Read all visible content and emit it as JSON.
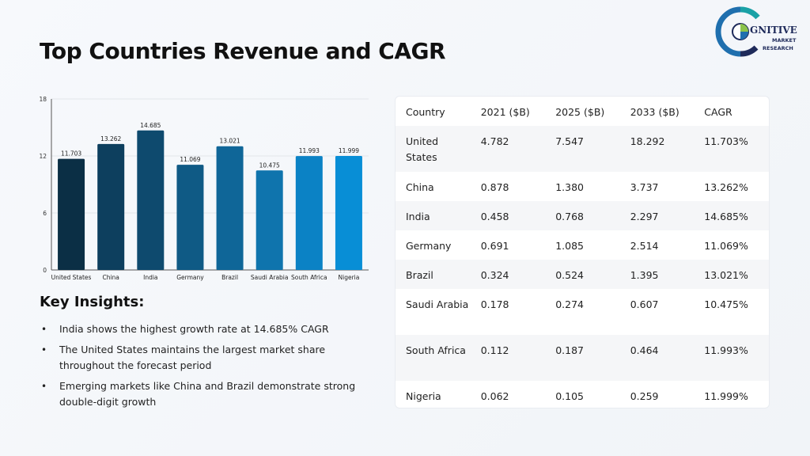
{
  "title": "Top Countries Revenue and CAGR",
  "logo": {
    "brand_text": "GNITIVE",
    "tagline_1": "MARKET",
    "tagline_2": "RESEARCH",
    "colors": {
      "ring_blue": "#1f6fae",
      "ring_teal": "#1aa1a6",
      "ring_green": "#8bc34a",
      "ring_navy": "#1e2a5a"
    }
  },
  "chart_data": {
    "type": "bar",
    "categories": [
      "United States",
      "China",
      "India",
      "Germany",
      "Brazil",
      "Saudi Arabia",
      "South Africa",
      "Nigeria"
    ],
    "values": [
      11.703,
      13.262,
      14.685,
      11.069,
      13.021,
      10.475,
      11.993,
      11.999
    ],
    "data_labels": [
      "11.703",
      "13.262",
      "14.685",
      "11.069",
      "13.021",
      "10.475",
      "11.993",
      "11.999"
    ],
    "colors": [
      "#0b2f45",
      "#0d3f5e",
      "#0e4a6e",
      "#0f5a85",
      "#0f6698",
      "#0f74ad",
      "#0b82c5",
      "#088ed6"
    ],
    "yticks": [
      "0",
      "6",
      "12",
      "18"
    ],
    "ylim": [
      0,
      18
    ],
    "grid": true,
    "legend": false,
    "title": "",
    "xlabel": "",
    "ylabel": ""
  },
  "insights": {
    "title": "Key Insights:",
    "bullet": "•",
    "items": [
      "India shows the highest growth rate at 14.685% CAGR",
      "The United States maintains the largest market share throughout the forecast period",
      "Emerging markets like China and Brazil demonstrate strong double-digit growth"
    ]
  },
  "table": {
    "headers": [
      "Country",
      "2021 ($B)",
      "2025 ($B)",
      "2033 ($B)",
      "CAGR"
    ],
    "rows": [
      [
        "United States",
        "4.782",
        "7.547",
        "18.292",
        "11.703%"
      ],
      [
        "China",
        "0.878",
        "1.380",
        "3.737",
        "13.262%"
      ],
      [
        "India",
        "0.458",
        "0.768",
        "2.297",
        "14.685%"
      ],
      [
        "Germany",
        "0.691",
        "1.085",
        "2.514",
        "11.069%"
      ],
      [
        "Brazil",
        "0.324",
        "0.524",
        "1.395",
        "13.021%"
      ],
      [
        "Saudi Arabia",
        "0.178",
        "0.274",
        "0.607",
        "10.475%"
      ],
      [
        "South Africa",
        "0.112",
        "0.187",
        "0.464",
        "11.993%"
      ],
      [
        "Nigeria",
        "0.062",
        "0.105",
        "0.259",
        "11.999%"
      ]
    ]
  }
}
